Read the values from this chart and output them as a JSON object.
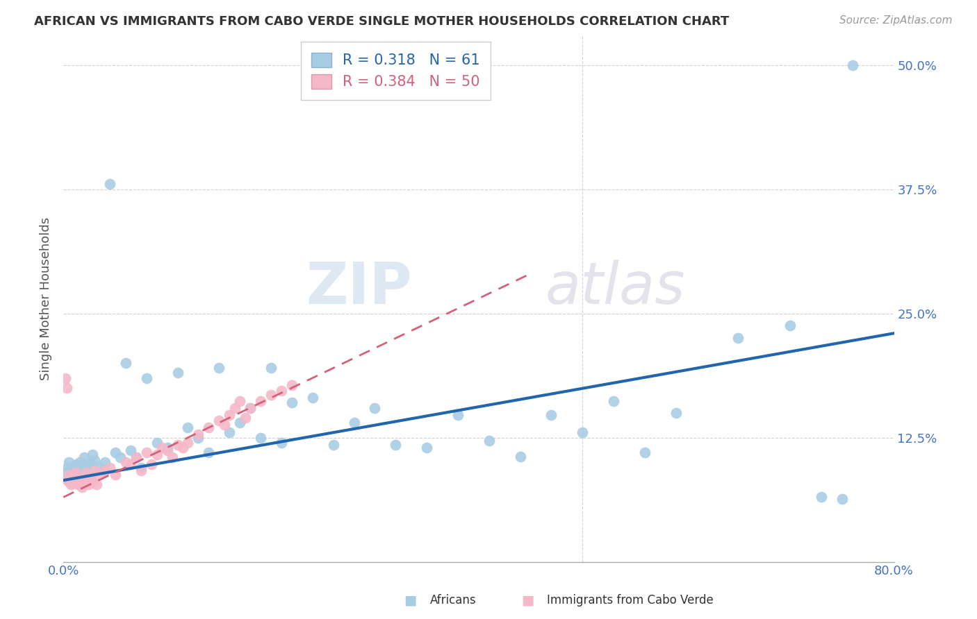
{
  "title": "AFRICAN VS IMMIGRANTS FROM CABO VERDE SINGLE MOTHER HOUSEHOLDS CORRELATION CHART",
  "source": "Source: ZipAtlas.com",
  "ylabel": "Single Mother Households",
  "xlim": [
    0.0,
    0.8
  ],
  "ylim": [
    0.0,
    0.53
  ],
  "xticks": [
    0.0,
    0.1,
    0.2,
    0.3,
    0.4,
    0.5,
    0.6,
    0.7,
    0.8
  ],
  "yticks": [
    0.0,
    0.125,
    0.25,
    0.375,
    0.5
  ],
  "ytick_labels_right": [
    "",
    "12.5%",
    "25.0%",
    "37.5%",
    "50.0%"
  ],
  "xtick_labels": [
    "0.0%",
    "",
    "",
    "",
    "",
    "",
    "",
    "",
    "80.0%"
  ],
  "legend_blue_r": "0.318",
  "legend_blue_n": "61",
  "legend_pink_r": "0.384",
  "legend_pink_n": "50",
  "blue_scatter_color": "#a8cce4",
  "pink_scatter_color": "#f4b8c8",
  "blue_line_color": "#2166ac",
  "pink_line_color": "#d4607a",
  "blue_line_slope": 0.185,
  "blue_line_intercept": 0.082,
  "pink_line_slope": 0.5,
  "pink_line_intercept": 0.065,
  "diag_line": false,
  "grid_color": "#d0d0d0",
  "watermark_text": "ZIPatlas",
  "africans_x": [
    0.003,
    0.004,
    0.005,
    0.006,
    0.007,
    0.008,
    0.009,
    0.01,
    0.012,
    0.014,
    0.016,
    0.018,
    0.02,
    0.022,
    0.024,
    0.026,
    0.028,
    0.03,
    0.035,
    0.04,
    0.045,
    0.05,
    0.055,
    0.06,
    0.065,
    0.07,
    0.075,
    0.08,
    0.09,
    0.1,
    0.11,
    0.12,
    0.13,
    0.14,
    0.15,
    0.16,
    0.17,
    0.18,
    0.19,
    0.2,
    0.21,
    0.22,
    0.24,
    0.26,
    0.28,
    0.3,
    0.32,
    0.35,
    0.38,
    0.41,
    0.44,
    0.47,
    0.5,
    0.53,
    0.56,
    0.59,
    0.65,
    0.7,
    0.73,
    0.75,
    0.76
  ],
  "africans_y": [
    0.09,
    0.095,
    0.1,
    0.088,
    0.092,
    0.085,
    0.095,
    0.09,
    0.098,
    0.092,
    0.1,
    0.095,
    0.105,
    0.098,
    0.092,
    0.1,
    0.108,
    0.102,
    0.095,
    0.1,
    0.38,
    0.11,
    0.105,
    0.2,
    0.112,
    0.105,
    0.095,
    0.185,
    0.12,
    0.115,
    0.19,
    0.135,
    0.125,
    0.11,
    0.195,
    0.13,
    0.14,
    0.155,
    0.125,
    0.195,
    0.12,
    0.16,
    0.165,
    0.118,
    0.14,
    0.155,
    0.118,
    0.115,
    0.148,
    0.122,
    0.106,
    0.148,
    0.13,
    0.162,
    0.11,
    0.15,
    0.225,
    0.238,
    0.065,
    0.063,
    0.5
  ],
  "caboverde_x": [
    0.002,
    0.003,
    0.004,
    0.005,
    0.006,
    0.007,
    0.008,
    0.009,
    0.01,
    0.012,
    0.014,
    0.016,
    0.018,
    0.02,
    0.022,
    0.024,
    0.026,
    0.028,
    0.03,
    0.032,
    0.035,
    0.04,
    0.045,
    0.05,
    0.06,
    0.065,
    0.07,
    0.075,
    0.08,
    0.085,
    0.09,
    0.095,
    0.1,
    0.105,
    0.11,
    0.115,
    0.12,
    0.13,
    0.14,
    0.15,
    0.155,
    0.16,
    0.165,
    0.17,
    0.175,
    0.18,
    0.19,
    0.2,
    0.21,
    0.22
  ],
  "caboverde_y": [
    0.185,
    0.175,
    0.082,
    0.088,
    0.08,
    0.078,
    0.085,
    0.082,
    0.08,
    0.09,
    0.078,
    0.085,
    0.075,
    0.082,
    0.09,
    0.078,
    0.085,
    0.08,
    0.092,
    0.078,
    0.088,
    0.092,
    0.095,
    0.088,
    0.1,
    0.098,
    0.105,
    0.092,
    0.11,
    0.098,
    0.108,
    0.115,
    0.112,
    0.105,
    0.118,
    0.115,
    0.12,
    0.128,
    0.135,
    0.142,
    0.138,
    0.148,
    0.155,
    0.162,
    0.145,
    0.155,
    0.162,
    0.168,
    0.172,
    0.178
  ]
}
